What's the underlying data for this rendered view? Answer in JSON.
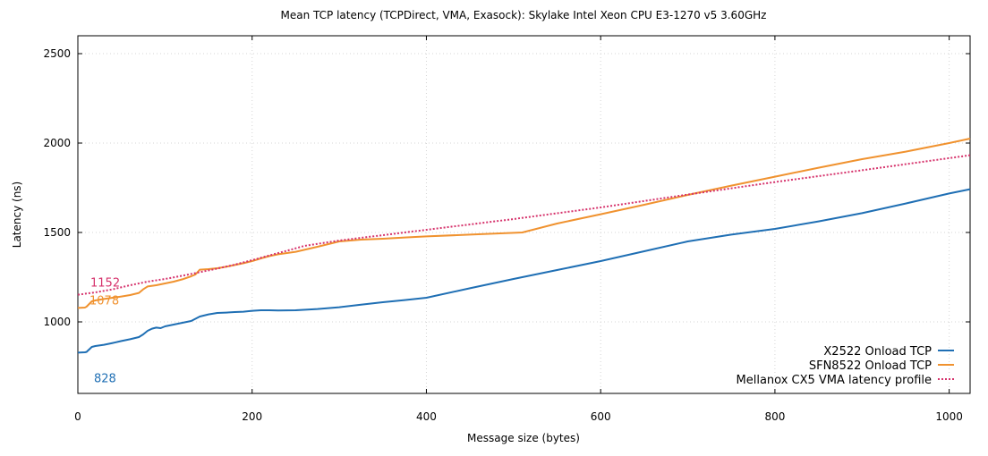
{
  "chart_data": {
    "type": "line",
    "title": "Mean TCP latency (TCPDirect, VMA, Exasock): Skylake Intel Xeon CPU E3-1270 v5 3.60GHz",
    "xlabel": "Message size (bytes)",
    "ylabel": "Latency (ns)",
    "xlim": [
      0,
      1024
    ],
    "ylim": [
      600,
      2600
    ],
    "xticks": [
      0,
      200,
      400,
      600,
      800,
      1000
    ],
    "yticks": [
      1000,
      1500,
      2000,
      2500
    ],
    "grid": true,
    "legend_position": "bottom-right",
    "series": [
      {
        "name": "X2522 Onload TCP",
        "color": "#1f6fb4",
        "style": "solid",
        "x": [
          0,
          8,
          10,
          16,
          20,
          30,
          40,
          50,
          60,
          70,
          75,
          80,
          85,
          90,
          95,
          100,
          110,
          120,
          130,
          140,
          150,
          160,
          170,
          180,
          190,
          200,
          210,
          220,
          230,
          250,
          275,
          300,
          325,
          350,
          375,
          400,
          450,
          500,
          550,
          600,
          650,
          700,
          750,
          800,
          850,
          900,
          950,
          1000,
          1024
        ],
        "y": [
          828,
          830,
          832,
          860,
          865,
          872,
          882,
          893,
          903,
          915,
          930,
          950,
          962,
          968,
          965,
          975,
          985,
          995,
          1005,
          1030,
          1042,
          1050,
          1052,
          1055,
          1057,
          1062,
          1065,
          1065,
          1064,
          1065,
          1072,
          1082,
          1096,
          1110,
          1122,
          1135,
          1188,
          1240,
          1290,
          1340,
          1395,
          1450,
          1488,
          1520,
          1562,
          1608,
          1662,
          1718,
          1742
        ]
      },
      {
        "name": "SFN8522 Onload TCP",
        "color": "#f0922f",
        "style": "solid",
        "x": [
          0,
          8,
          10,
          16,
          20,
          30,
          40,
          50,
          60,
          70,
          75,
          80,
          90,
          100,
          110,
          120,
          130,
          135,
          140,
          150,
          160,
          170,
          180,
          190,
          200,
          210,
          220,
          230,
          250,
          275,
          300,
          325,
          350,
          375,
          400,
          450,
          510,
          550,
          600,
          650,
          700,
          750,
          800,
          850,
          900,
          950,
          1000,
          1024
        ],
        "y": [
          1078,
          1080,
          1085,
          1115,
          1120,
          1128,
          1135,
          1142,
          1150,
          1162,
          1182,
          1198,
          1205,
          1215,
          1225,
          1238,
          1255,
          1265,
          1292,
          1295,
          1300,
          1308,
          1318,
          1328,
          1340,
          1355,
          1368,
          1378,
          1392,
          1420,
          1450,
          1460,
          1465,
          1472,
          1478,
          1488,
          1500,
          1550,
          1602,
          1655,
          1710,
          1762,
          1812,
          1862,
          1910,
          1952,
          2000,
          2025
        ]
      },
      {
        "name": "Mellanox CX5 VMA latency profile",
        "color": "#d6336c",
        "style": "dotted",
        "x": [
          0,
          20,
          40,
          60,
          80,
          100,
          120,
          140,
          160,
          180,
          200,
          220,
          240,
          260,
          280,
          300,
          350,
          400,
          500,
          600,
          700,
          800,
          900,
          1024
        ],
        "y": [
          1152,
          1165,
          1182,
          1205,
          1225,
          1240,
          1258,
          1278,
          1298,
          1320,
          1345,
          1372,
          1398,
          1425,
          1440,
          1455,
          1485,
          1515,
          1575,
          1640,
          1712,
          1782,
          1848,
          1932
        ]
      }
    ],
    "annotations": [
      {
        "text": "1152",
        "series": 2
      },
      {
        "text": "1078",
        "series": 1
      },
      {
        "text": "828",
        "series": 0
      }
    ]
  }
}
